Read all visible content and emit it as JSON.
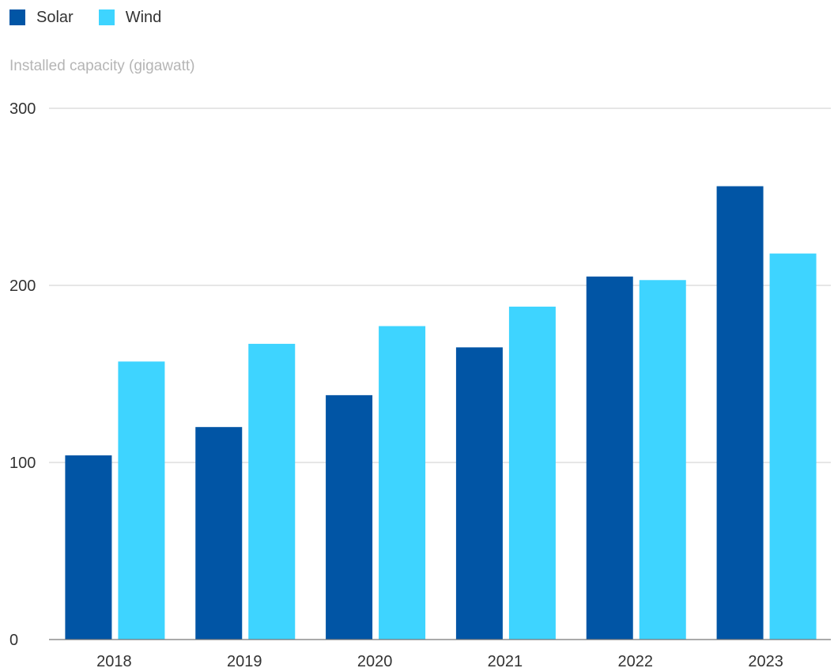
{
  "legend": {
    "items": [
      {
        "label": "Solar",
        "color": "#0155a5"
      },
      {
        "label": "Wind",
        "color": "#3ed4ff"
      }
    ]
  },
  "chart_data": {
    "type": "bar",
    "title": "",
    "ylabel": "Installed capacity (gigawatt)",
    "xlabel": "",
    "categories": [
      "2018",
      "2019",
      "2020",
      "2021",
      "2022",
      "2023"
    ],
    "series": [
      {
        "name": "Solar",
        "color": "#0155a5",
        "values": [
          104,
          120,
          138,
          165,
          205,
          256
        ]
      },
      {
        "name": "Wind",
        "color": "#3ed4ff",
        "values": [
          157,
          167,
          177,
          188,
          203,
          218
        ]
      }
    ],
    "ylim": [
      0,
      300
    ],
    "yticks": [
      0,
      100,
      200,
      300
    ],
    "grid": true,
    "legend_position": "top-left"
  }
}
